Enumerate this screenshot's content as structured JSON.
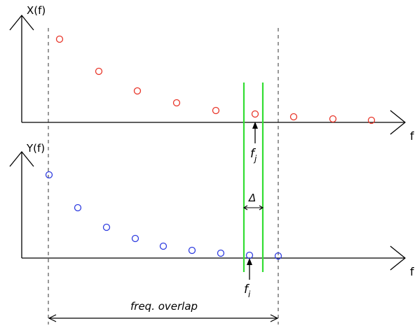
{
  "diagram": {
    "top_axis": {
      "ylabel": "X(f)",
      "xlabel": "f"
    },
    "bottom_axis": {
      "ylabel": "Y(f)",
      "xlabel": "f"
    },
    "markers": {
      "fj_letter": "f",
      "fj_sub": "j",
      "fi_letter": "f",
      "fi_sub": "i",
      "delta": "Δ"
    },
    "overlap_label": "freq. overlap",
    "colors": {
      "axis": "#000000",
      "x_points": "#e8362a",
      "y_points": "#2f3de0",
      "band": "#33dd33",
      "guides": "#333333"
    }
  }
}
